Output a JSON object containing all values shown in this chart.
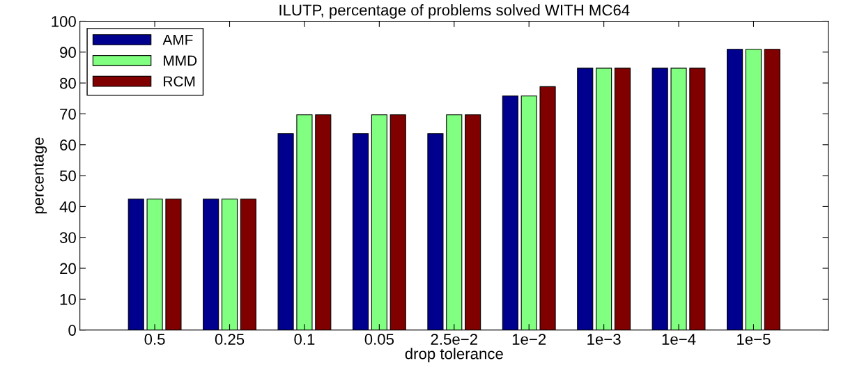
{
  "chart_data": {
    "type": "bar",
    "title": "ILUTP, percentage of problems solved WITH MC64",
    "xlabel": "drop tolerance",
    "ylabel": "percentage",
    "categories": [
      "0.5",
      "0.25",
      "0.1",
      "0.05",
      "2.5e−2",
      "1e−2",
      "1e−3",
      "1e−4",
      "1e−5"
    ],
    "series": [
      {
        "name": "AMF",
        "color": "#00008f",
        "values": [
          42.4,
          42.4,
          63.6,
          63.6,
          63.6,
          75.8,
          84.8,
          84.8,
          90.9
        ]
      },
      {
        "name": "MMD",
        "color": "#80ff80",
        "values": [
          42.4,
          42.4,
          69.7,
          69.7,
          69.7,
          75.8,
          84.8,
          84.8,
          90.9
        ]
      },
      {
        "name": "RCM",
        "color": "#800000",
        "values": [
          42.4,
          42.4,
          69.7,
          69.7,
          69.7,
          78.8,
          84.8,
          84.8,
          90.9
        ]
      }
    ],
    "ylim": [
      0,
      100
    ],
    "yticks": [
      0,
      10,
      20,
      30,
      40,
      50,
      60,
      70,
      80,
      90,
      100
    ],
    "grid": false,
    "legend": "top left"
  }
}
